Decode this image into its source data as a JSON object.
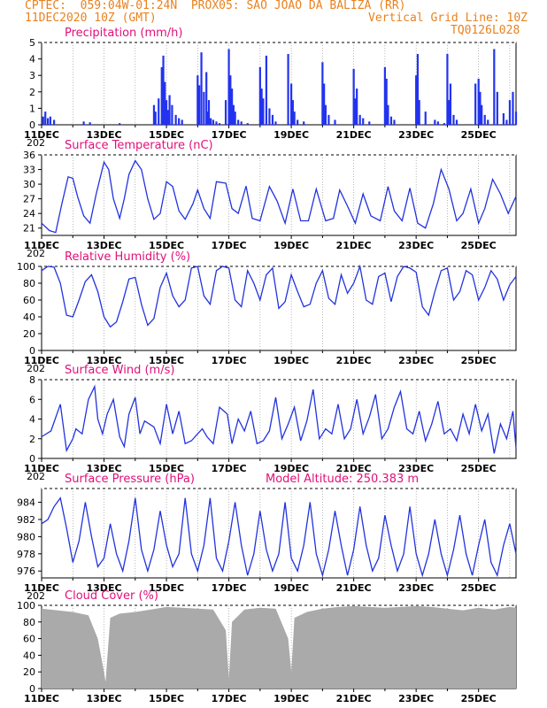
{
  "header": {
    "line1_left": "CPTEC:  059:04W-01:24N  PROX05: SAO JOAO DA BALIZA (RR)",
    "line2_left": "11DEC2020 10Z (GMT)",
    "line2_right": "Vertical Grid Line: 10Z",
    "line3_right": "TQ0126L028"
  },
  "colors": {
    "header": "#e8821e",
    "title": "#e0107a",
    "line": "#2233dd",
    "bars": "#2233ee",
    "cloud": "#aaaaaa"
  },
  "x_day_labels": [
    "11DEC",
    "13DEC",
    "15DEC",
    "17DEC",
    "19DEC",
    "21DEC",
    "23DEC",
    "25DEC"
  ],
  "x_year_fragment": "202",
  "chart_data": [
    {
      "type": "bar",
      "title": "Precipitation (mm/h)",
      "ylim": [
        0,
        5
      ],
      "yticks": [
        "0",
        "1",
        "2",
        "3",
        "4",
        "5"
      ],
      "x_days": [
        0.05,
        0.12,
        0.2,
        0.28,
        0.4,
        1.35,
        1.55,
        2.5,
        3.6,
        3.65,
        3.75,
        3.85,
        3.9,
        3.95,
        4.0,
        4.05,
        4.1,
        4.18,
        4.3,
        4.4,
        4.5,
        5.0,
        5.05,
        5.12,
        5.2,
        5.28,
        5.32,
        5.36,
        5.42,
        5.5,
        5.6,
        5.7,
        5.9,
        6.0,
        6.05,
        6.1,
        6.15,
        6.2,
        6.3,
        6.4,
        6.6,
        7.0,
        7.05,
        7.1,
        7.2,
        7.3,
        7.4,
        7.5,
        7.9,
        8.0,
        8.05,
        8.1,
        8.2,
        8.4,
        9.0,
        9.05,
        9.1,
        9.2,
        9.4,
        10.0,
        10.05,
        10.1,
        10.2,
        10.3,
        10.5,
        11.0,
        11.05,
        11.1,
        11.2,
        11.3,
        12.0,
        12.05,
        12.1,
        12.3,
        12.6,
        12.7,
        12.9,
        13.0,
        13.05,
        13.1,
        13.2,
        13.3,
        13.9,
        14.0,
        14.05,
        14.1,
        14.2,
        14.3,
        14.5,
        14.6,
        14.8,
        14.9,
        15.0,
        15.1,
        15.2
      ],
      "values": [
        0.5,
        0.8,
        0.4,
        0.5,
        0.3,
        0.2,
        0.15,
        0.1,
        1.2,
        0.8,
        1.6,
        3.5,
        4.2,
        2.6,
        1.5,
        0.9,
        1.8,
        1.2,
        0.6,
        0.4,
        0.3,
        3.0,
        2.4,
        4.4,
        2.0,
        3.2,
        0.8,
        1.5,
        0.4,
        0.3,
        0.2,
        0.1,
        1.5,
        4.6,
        3.0,
        2.2,
        1.2,
        0.8,
        0.3,
        0.2,
        0.1,
        3.5,
        2.2,
        1.6,
        4.2,
        1.0,
        0.6,
        0.2,
        4.3,
        2.5,
        1.5,
        0.8,
        0.3,
        0.2,
        3.8,
        2.5,
        1.2,
        0.6,
        0.3,
        3.4,
        1.6,
        2.2,
        0.6,
        0.4,
        0.2,
        3.5,
        2.8,
        1.2,
        0.5,
        0.3,
        3.0,
        4.3,
        1.5,
        0.8,
        0.3,
        0.2,
        0.1,
        4.3,
        1.5,
        2.5,
        0.6,
        0.3,
        2.5,
        2.8,
        2.0,
        1.2,
        0.6,
        0.3,
        4.6,
        2.0,
        0.7,
        0.3,
        1.5,
        2.0,
        0.8
      ],
      "xlim_days": [
        0,
        15.2
      ]
    },
    {
      "type": "line",
      "title": "Surface Temperature (nC)",
      "ylim": [
        19.5,
        36
      ],
      "yticks": [
        "21",
        "24",
        "27",
        "30",
        "33",
        "36"
      ],
      "x_days": [
        0,
        0.25,
        0.45,
        0.65,
        0.85,
        1.0,
        1.15,
        1.35,
        1.55,
        1.75,
        2.0,
        2.15,
        2.3,
        2.5,
        2.65,
        2.8,
        3.0,
        3.2,
        3.4,
        3.6,
        3.8,
        4.0,
        4.2,
        4.4,
        4.6,
        4.85,
        5.0,
        5.2,
        5.4,
        5.6,
        5.9,
        6.1,
        6.3,
        6.55,
        6.75,
        7.0,
        7.3,
        7.55,
        7.8,
        8.05,
        8.3,
        8.55,
        8.8,
        9.1,
        9.35,
        9.55,
        9.8,
        10.05,
        10.3,
        10.55,
        10.85,
        11.1,
        11.3,
        11.55,
        11.8,
        12.05,
        12.3,
        12.55,
        12.8,
        13.05,
        13.3,
        13.5,
        13.75,
        14.0,
        14.2,
        14.45,
        14.7,
        14.95,
        15.2
      ],
      "values": [
        22,
        20.5,
        20.1,
        26,
        31.5,
        31.2,
        27.5,
        23.5,
        22,
        28,
        34.5,
        33,
        27,
        23,
        27,
        32,
        34.8,
        33,
        27,
        22.8,
        24,
        30.5,
        29.5,
        24.5,
        22.8,
        26,
        28.8,
        25,
        23,
        30.5,
        30.2,
        25,
        24,
        29.6,
        23,
        22.5,
        29.5,
        26.5,
        22,
        29,
        22.5,
        22.5,
        29,
        22.5,
        23,
        28.8,
        25.5,
        22,
        28,
        23.5,
        22.5,
        29.5,
        24.5,
        22.5,
        29.2,
        22,
        21,
        26,
        33,
        29,
        22.5,
        24,
        29,
        22,
        25,
        31,
        28,
        24,
        27.5
      ],
      "xlim_days": [
        0,
        15.2
      ]
    },
    {
      "type": "line",
      "title": "Relative Humidity (%)",
      "ylim": [
        0,
        100
      ],
      "yticks": [
        "0",
        "20",
        "40",
        "60",
        "80",
        "100"
      ],
      "x_days": [
        0,
        0.2,
        0.4,
        0.6,
        0.8,
        1.0,
        1.2,
        1.4,
        1.6,
        1.8,
        2.0,
        2.2,
        2.4,
        2.6,
        2.8,
        3.0,
        3.2,
        3.4,
        3.6,
        3.8,
        4.0,
        4.2,
        4.4,
        4.6,
        4.8,
        5.0,
        5.2,
        5.4,
        5.6,
        5.8,
        6.0,
        6.2,
        6.4,
        6.6,
        6.8,
        7.0,
        7.2,
        7.4,
        7.6,
        7.8,
        8.0,
        8.2,
        8.4,
        8.6,
        8.8,
        9.0,
        9.2,
        9.4,
        9.6,
        9.8,
        10.0,
        10.2,
        10.4,
        10.6,
        10.8,
        11.0,
        11.2,
        11.4,
        11.6,
        11.8,
        12.0,
        12.2,
        12.4,
        12.6,
        12.8,
        13.0,
        13.2,
        13.4,
        13.6,
        13.8,
        14.0,
        14.2,
        14.4,
        14.6,
        14.8,
        15.0,
        15.2
      ],
      "values": [
        95,
        100,
        99,
        80,
        42,
        40,
        60,
        82,
        90,
        70,
        40,
        28,
        34,
        58,
        85,
        87,
        55,
        30,
        38,
        75,
        92,
        65,
        52,
        60,
        98,
        100,
        65,
        55,
        95,
        100,
        98,
        60,
        52,
        95,
        80,
        60,
        90,
        98,
        50,
        58,
        90,
        70,
        52,
        55,
        80,
        95,
        62,
        55,
        90,
        68,
        80,
        100,
        60,
        55,
        88,
        92,
        58,
        88,
        100,
        98,
        93,
        52,
        42,
        70,
        95,
        98,
        60,
        70,
        95,
        90,
        60,
        75,
        95,
        85,
        60,
        78,
        88
      ],
      "xlim_days": [
        0,
        15.2
      ]
    },
    {
      "type": "line",
      "title": "Surface Wind (m/s)",
      "ylim": [
        0,
        8
      ],
      "yticks": [
        "0",
        "2",
        "4",
        "6",
        "8"
      ],
      "x_days": [
        0,
        0.3,
        0.6,
        0.8,
        1.0,
        1.1,
        1.3,
        1.5,
        1.7,
        1.8,
        1.95,
        2.1,
        2.3,
        2.5,
        2.65,
        2.8,
        3.0,
        3.15,
        3.3,
        3.6,
        3.8,
        4.0,
        4.2,
        4.4,
        4.6,
        4.8,
        5.0,
        5.15,
        5.3,
        5.5,
        5.7,
        5.95,
        6.1,
        6.3,
        6.5,
        6.7,
        6.9,
        7.1,
        7.3,
        7.5,
        7.7,
        7.9,
        8.1,
        8.3,
        8.5,
        8.7,
        8.9,
        9.1,
        9.3,
        9.5,
        9.7,
        9.9,
        10.1,
        10.3,
        10.5,
        10.7,
        10.9,
        11.1,
        11.3,
        11.5,
        11.7,
        11.9,
        12.1,
        12.3,
        12.5,
        12.7,
        12.9,
        13.1,
        13.3,
        13.5,
        13.7,
        13.9,
        14.1,
        14.3,
        14.5,
        14.7,
        14.9,
        15.1,
        15.2
      ],
      "values": [
        2.2,
        2.8,
        5.5,
        0.8,
        2,
        3,
        2.5,
        6,
        7.3,
        4,
        2.5,
        4.5,
        6,
        2.2,
        1.2,
        4.5,
        6.2,
        2.5,
        3.8,
        3.2,
        1.5,
        5.5,
        2.5,
        4.8,
        1.5,
        1.8,
        2.5,
        3,
        2.2,
        1.5,
        5.2,
        4.5,
        1.5,
        4,
        2.8,
        4.8,
        1.5,
        1.8,
        2.8,
        6.2,
        2,
        3.5,
        5.2,
        1.8,
        3.8,
        7,
        2,
        3,
        2.5,
        5.5,
        2,
        3,
        6,
        2.5,
        4.2,
        6.5,
        2,
        3,
        5.2,
        6.8,
        3,
        2.5,
        4.8,
        1.8,
        3.5,
        5.8,
        2.5,
        3,
        1.8,
        4.5,
        2.5,
        5.5,
        2.8,
        4.5,
        0.5,
        3.5,
        2,
        4.8,
        1
      ],
      "xlim_days": [
        0,
        15.2
      ]
    },
    {
      "type": "line",
      "title": "Surface Pressure (hPa)",
      "annotation": "Model Altitude: 250.383 m",
      "ylim": [
        975.2,
        985.6
      ],
      "yticks": [
        "976",
        "978",
        "980",
        "982",
        "984"
      ],
      "x_days": [
        0,
        0.2,
        0.4,
        0.6,
        0.8,
        1.0,
        1.2,
        1.4,
        1.6,
        1.8,
        2.0,
        2.2,
        2.4,
        2.6,
        2.8,
        3.0,
        3.2,
        3.4,
        3.6,
        3.8,
        4.0,
        4.2,
        4.4,
        4.6,
        4.8,
        5.0,
        5.2,
        5.4,
        5.6,
        5.8,
        6.0,
        6.2,
        6.4,
        6.6,
        6.8,
        7.0,
        7.2,
        7.4,
        7.6,
        7.8,
        8.0,
        8.2,
        8.4,
        8.6,
        8.8,
        9.0,
        9.2,
        9.4,
        9.6,
        9.8,
        10.0,
        10.2,
        10.4,
        10.6,
        10.8,
        11.0,
        11.2,
        11.4,
        11.6,
        11.8,
        12.0,
        12.2,
        12.4,
        12.6,
        12.8,
        13.0,
        13.2,
        13.4,
        13.6,
        13.8,
        14.0,
        14.2,
        14.4,
        14.6,
        14.8,
        15.0,
        15.2
      ],
      "values": [
        981.5,
        982,
        983.5,
        984.5,
        981,
        977,
        979.5,
        984,
        980,
        976.5,
        977.5,
        981.5,
        978,
        976,
        979.5,
        984.5,
        978.5,
        976,
        978.5,
        983,
        979,
        976.5,
        978,
        984.5,
        978,
        976,
        979,
        984.5,
        977.5,
        976,
        979.5,
        984,
        979,
        975.5,
        978,
        983,
        978.5,
        976,
        978,
        984,
        977.5,
        976,
        979,
        984,
        978,
        975.5,
        978.5,
        983,
        979,
        975.5,
        978.5,
        983.5,
        979,
        976,
        977.5,
        982.5,
        979,
        976,
        978,
        983.5,
        978,
        975.5,
        978,
        982,
        978,
        975.5,
        978.5,
        982.5,
        978,
        975.5,
        979,
        982,
        977,
        975.5,
        979,
        981.5,
        978
      ],
      "xlim_days": [
        0,
        15.2
      ]
    },
    {
      "type": "area",
      "title": "Cloud Cover (%)",
      "ylim": [
        0,
        100
      ],
      "yticks": [
        "0",
        "20",
        "40",
        "60",
        "80",
        "100"
      ],
      "x_days": [
        0,
        0.5,
        1.0,
        1.5,
        1.8,
        2.0,
        2.05,
        2.1,
        2.2,
        2.5,
        3.0,
        3.5,
        4.0,
        4.5,
        5.0,
        5.5,
        5.9,
        6.0,
        6.1,
        6.5,
        7.0,
        7.5,
        7.9,
        8.0,
        8.1,
        8.5,
        9.0,
        9.5,
        10.0,
        10.5,
        11.0,
        11.5,
        12.0,
        12.5,
        13.0,
        13.5,
        14.0,
        14.5,
        15.0,
        15.2
      ],
      "values": [
        96,
        94,
        92,
        88,
        60,
        20,
        8,
        35,
        85,
        90,
        92,
        95,
        98,
        97,
        96,
        95,
        70,
        12,
        80,
        95,
        97,
        96,
        60,
        20,
        85,
        92,
        96,
        98,
        99,
        98,
        97,
        98,
        99,
        98,
        96,
        94,
        97,
        95,
        98,
        97
      ],
      "xlim_days": [
        0,
        15.2
      ]
    }
  ]
}
